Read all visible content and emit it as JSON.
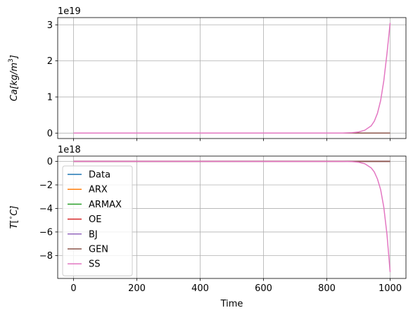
{
  "chart_data": [
    {
      "type": "line",
      "ylabel_base": "Ca",
      "ylabel_unit_main": "[kg/m",
      "ylabel_unit_sup": "3",
      "ylabel_unit_end": "]",
      "offset_text": "1e19",
      "xlim": [
        -50,
        1050
      ],
      "ylim": [
        -0.15,
        3.2
      ],
      "yticks": [
        0,
        1,
        2,
        3
      ],
      "ytick_labels": [
        "0",
        "1",
        "2",
        "3"
      ],
      "xticks": [
        0,
        200,
        400,
        600,
        800,
        1000
      ],
      "xtick_labels_visible": false,
      "grid": true,
      "series": [
        {
          "name": "Data",
          "color": "#1f77b4",
          "x": [
            0,
            1000
          ],
          "y": [
            0,
            0
          ]
        },
        {
          "name": "ARX",
          "color": "#ff7f0e",
          "x": [
            0,
            1000
          ],
          "y": [
            0,
            0
          ]
        },
        {
          "name": "ARMAX",
          "color": "#2ca02c",
          "x": [
            0,
            1000
          ],
          "y": [
            0,
            0
          ]
        },
        {
          "name": "OE",
          "color": "#d62728",
          "x": [
            0,
            1000
          ],
          "y": [
            0,
            0
          ]
        },
        {
          "name": "BJ",
          "color": "#9467bd",
          "x": [
            0,
            1000
          ],
          "y": [
            0,
            0
          ]
        },
        {
          "name": "GEN",
          "color": "#8c564b",
          "x": [
            0,
            1000
          ],
          "y": [
            0,
            0
          ]
        },
        {
          "name": "SS",
          "color": "#e377c2",
          "x": [
            0,
            850,
            880,
            900,
            920,
            940,
            950,
            960,
            970,
            980,
            990,
            1000
          ],
          "y": [
            0,
            0.002,
            0.01,
            0.03,
            0.08,
            0.2,
            0.33,
            0.55,
            0.9,
            1.45,
            2.2,
            3.05
          ]
        }
      ]
    },
    {
      "type": "line",
      "ylabel_base": "T",
      "ylabel_unit_main": "[",
      "ylabel_unit_sup": "∘",
      "ylabel_unit_end": "C]",
      "offset_text": "1e18",
      "xlabel": "Time",
      "xlim": [
        -50,
        1050
      ],
      "ylim": [
        -9.95,
        0.45
      ],
      "yticks": [
        0,
        -2,
        -4,
        -6,
        -8
      ],
      "ytick_labels": [
        "0",
        "−2",
        "−4",
        "−6",
        "−8"
      ],
      "xticks": [
        0,
        200,
        400,
        600,
        800,
        1000
      ],
      "xtick_labels": [
        "0",
        "200",
        "400",
        "600",
        "800",
        "1000"
      ],
      "grid": true,
      "legend": {
        "location": "lower-left",
        "entries": [
          "Data",
          "ARX",
          "ARMAX",
          "OE",
          "BJ",
          "GEN",
          "SS"
        ]
      },
      "series": [
        {
          "name": "Data",
          "color": "#1f77b4",
          "x": [
            0,
            1000
          ],
          "y": [
            0,
            0
          ]
        },
        {
          "name": "ARX",
          "color": "#ff7f0e",
          "x": [
            0,
            1000
          ],
          "y": [
            0,
            0
          ]
        },
        {
          "name": "ARMAX",
          "color": "#2ca02c",
          "x": [
            0,
            1000
          ],
          "y": [
            0,
            0
          ]
        },
        {
          "name": "OE",
          "color": "#d62728",
          "x": [
            0,
            1000
          ],
          "y": [
            0,
            0
          ]
        },
        {
          "name": "BJ",
          "color": "#9467bd",
          "x": [
            0,
            1000
          ],
          "y": [
            0,
            0
          ]
        },
        {
          "name": "GEN",
          "color": "#8c564b",
          "x": [
            0,
            1000
          ],
          "y": [
            0,
            0
          ]
        },
        {
          "name": "SS",
          "color": "#e377c2",
          "x": [
            0,
            850,
            880,
            900,
            920,
            940,
            950,
            960,
            970,
            980,
            990,
            1000
          ],
          "y": [
            0,
            -0.003,
            -0.02,
            -0.07,
            -0.2,
            -0.55,
            -0.9,
            -1.5,
            -2.4,
            -3.9,
            -6.2,
            -9.4
          ]
        }
      ]
    }
  ]
}
